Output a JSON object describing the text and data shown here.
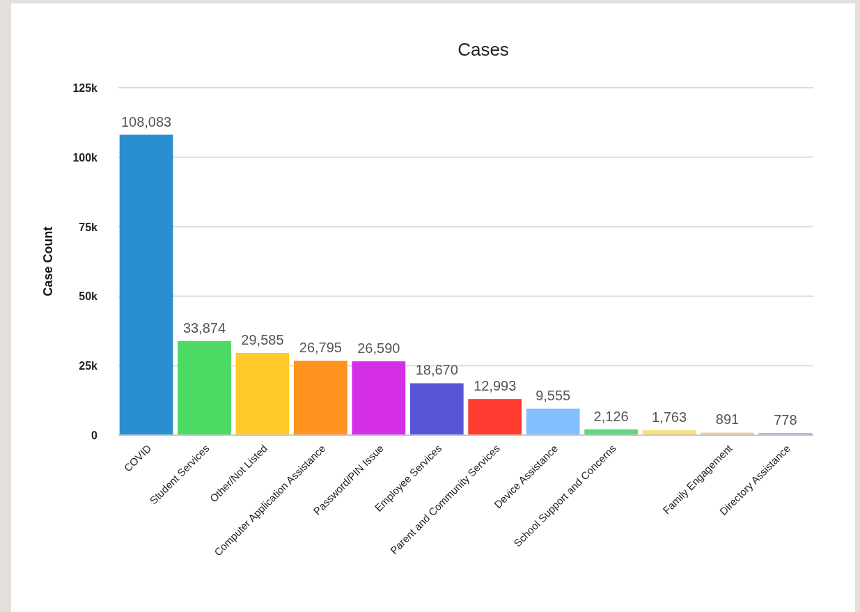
{
  "chart_data": {
    "type": "bar",
    "title": "Cases",
    "ylabel": "Case Count",
    "categories": [
      "COVID",
      "Student Services",
      "Other/Not Listed",
      "Computer Application Assistance",
      "Password/PIN Issue",
      "Employee Services",
      "Parent and Community Services",
      "Device Assistance",
      "School Support and Concerns",
      null,
      "Family Engagement",
      "Directory Assistance"
    ],
    "values": [
      108083,
      33874,
      29585,
      26795,
      26590,
      18670,
      12993,
      9555,
      2126,
      1763,
      891,
      778
    ],
    "colors": [
      "#2a8fd0",
      "#4cd964",
      "#ffca28",
      "#ff931e",
      "#d52ee8",
      "#5856d6",
      "#ff3b30",
      "#82bfff",
      "#5fd97e",
      "#fbe27c",
      "#eccf9c",
      "#c9a2e6"
    ],
    "ylim": [
      0,
      125000
    ],
    "yticks": [
      {
        "value": 0,
        "label": "0"
      },
      {
        "value": 25000,
        "label": "25k"
      },
      {
        "value": 50000,
        "label": "50k"
      },
      {
        "value": 75000,
        "label": "75k"
      },
      {
        "value": 100000,
        "label": "100k"
      },
      {
        "value": 125000,
        "label": "125k"
      }
    ],
    "value_labels": [
      "108,083",
      "33,874",
      "29,585",
      "26,795",
      "26,590",
      "18,670",
      "12,993",
      "9,555",
      "2,126",
      "1,763",
      "891",
      "778"
    ],
    "grid": "y"
  }
}
